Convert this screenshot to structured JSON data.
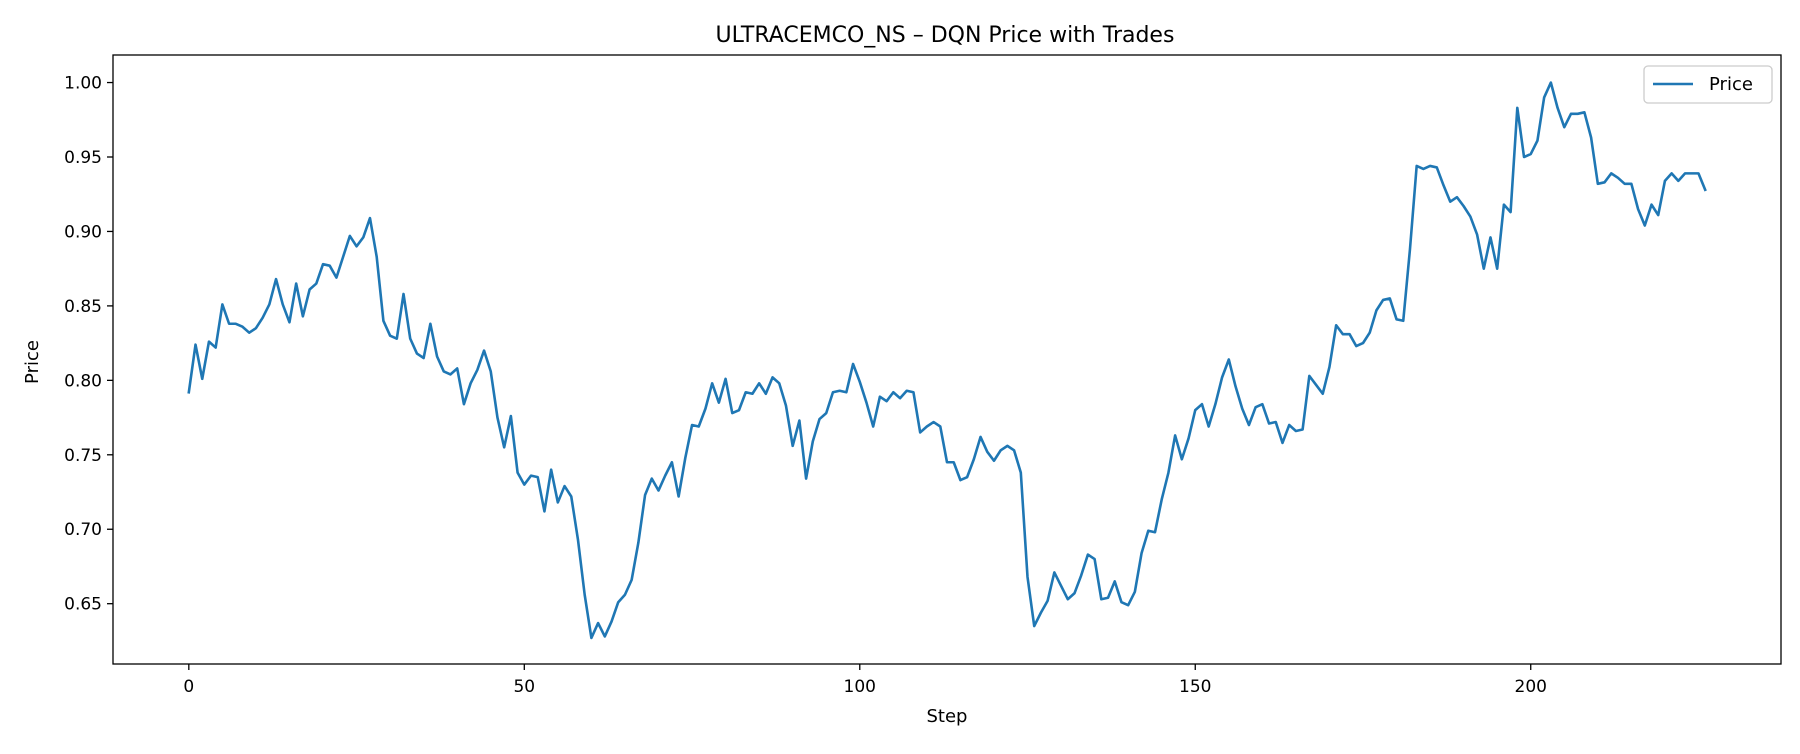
{
  "chart_data": {
    "type": "line",
    "title": "ULTRACEMCO_NS – DQN Price with Trades",
    "xlabel": "Step",
    "ylabel": "Price",
    "xlim": [
      -11.3,
      237.3
    ],
    "ylim": [
      0.6095,
      1.0185
    ],
    "xticks": [
      0,
      50,
      100,
      150,
      200
    ],
    "yticks": [
      "0.65",
      "0.70",
      "0.75",
      "0.80",
      "0.85",
      "0.90",
      "0.95",
      "1.00"
    ],
    "legend": {
      "position": "top-right",
      "entries": [
        "Price"
      ]
    },
    "grid": false,
    "series": [
      {
        "name": "Price",
        "color": "#1f77b4",
        "x_start": 0,
        "x_step": 1,
        "values": [
          0.792,
          0.824,
          0.801,
          0.826,
          0.822,
          0.851,
          0.838,
          0.838,
          0.836,
          0.832,
          0.835,
          0.842,
          0.851,
          0.868,
          0.851,
          0.839,
          0.865,
          0.843,
          0.861,
          0.865,
          0.878,
          0.877,
          0.869,
          0.883,
          0.897,
          0.89,
          0.896,
          0.909,
          0.883,
          0.84,
          0.83,
          0.828,
          0.858,
          0.828,
          0.818,
          0.815,
          0.838,
          0.816,
          0.806,
          0.804,
          0.808,
          0.784,
          0.798,
          0.807,
          0.82,
          0.806,
          0.775,
          0.755,
          0.776,
          0.738,
          0.73,
          0.736,
          0.735,
          0.712,
          0.74,
          0.718,
          0.729,
          0.722,
          0.693,
          0.656,
          0.627,
          0.637,
          0.628,
          0.638,
          0.651,
          0.656,
          0.666,
          0.691,
          0.723,
          0.734,
          0.726,
          0.736,
          0.745,
          0.722,
          0.748,
          0.77,
          0.769,
          0.781,
          0.798,
          0.785,
          0.801,
          0.778,
          0.78,
          0.792,
          0.791,
          0.798,
          0.791,
          0.802,
          0.798,
          0.783,
          0.756,
          0.773,
          0.734,
          0.759,
          0.774,
          0.778,
          0.792,
          0.793,
          0.792,
          0.811,
          0.799,
          0.785,
          0.769,
          0.789,
          0.786,
          0.792,
          0.788,
          0.793,
          0.792,
          0.765,
          0.769,
          0.772,
          0.769,
          0.745,
          0.745,
          0.733,
          0.735,
          0.747,
          0.762,
          0.752,
          0.746,
          0.753,
          0.756,
          0.753,
          0.738,
          0.668,
          0.635,
          0.644,
          0.652,
          0.671,
          0.662,
          0.653,
          0.657,
          0.669,
          0.683,
          0.68,
          0.653,
          0.654,
          0.665,
          0.651,
          0.649,
          0.658,
          0.684,
          0.699,
          0.698,
          0.72,
          0.738,
          0.763,
          0.747,
          0.761,
          0.78,
          0.784,
          0.769,
          0.784,
          0.802,
          0.814,
          0.796,
          0.781,
          0.77,
          0.782,
          0.784,
          0.771,
          0.772,
          0.758,
          0.77,
          0.766,
          0.767,
          0.803,
          0.797,
          0.791,
          0.809,
          0.837,
          0.831,
          0.831,
          0.823,
          0.825,
          0.832,
          0.847,
          0.854,
          0.855,
          0.841,
          0.84,
          0.888,
          0.944,
          0.942,
          0.944,
          0.943,
          0.931,
          0.92,
          0.923,
          0.917,
          0.91,
          0.898,
          0.875,
          0.896,
          0.875,
          0.918,
          0.913,
          0.983,
          0.95,
          0.952,
          0.961,
          0.99,
          1.0,
          0.983,
          0.97,
          0.979,
          0.979,
          0.98,
          0.963,
          0.932,
          0.933,
          0.939,
          0.936,
          0.932,
          0.932,
          0.915,
          0.904,
          0.918,
          0.911,
          0.934,
          0.939,
          0.934,
          0.939,
          0.939,
          0.939,
          0.928
        ]
      }
    ]
  }
}
